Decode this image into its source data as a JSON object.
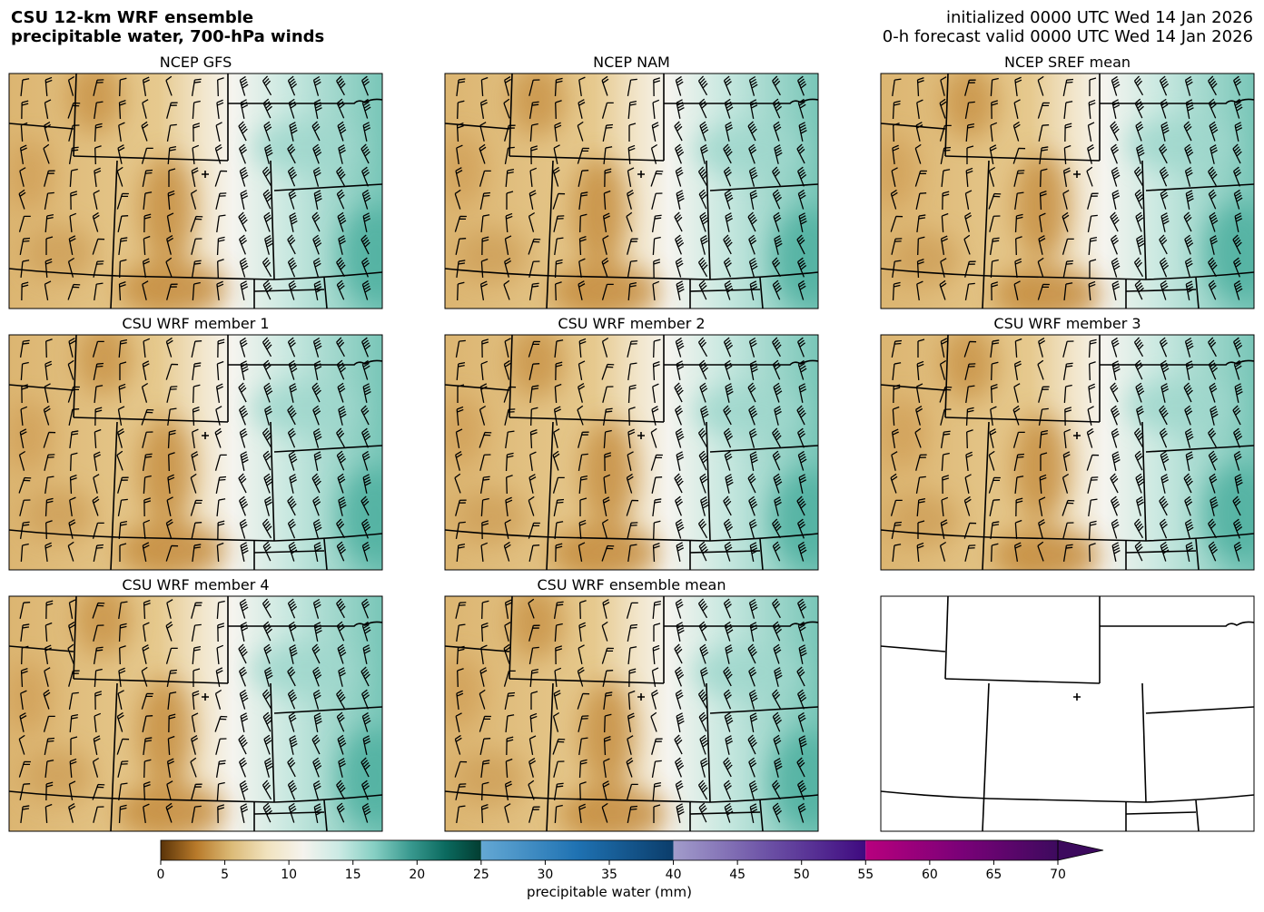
{
  "header": {
    "title_lines": [
      "CSU 12-km WRF ensemble",
      "precipitable water, 700-hPa winds"
    ],
    "init": "initialized 0000 UTC Wed 14 Jan 2026",
    "valid": "0-h forecast valid 0000 UTC Wed 14 Jan 2026"
  },
  "panel_titles": [
    "NCEP GFS",
    "NCEP NAM",
    "NCEP SREF mean",
    "CSU WRF member 1",
    "CSU WRF member 2",
    "CSU WRF member 3",
    "CSU WRF member 4",
    "CSU WRF ensemble mean"
  ],
  "colorbar": {
    "label": "precipitable water (mm)",
    "lim": [
      0,
      70
    ],
    "ticks": [
      0,
      5,
      10,
      15,
      20,
      25,
      30,
      35,
      40,
      45,
      50,
      55,
      60,
      65,
      70
    ],
    "extend": "max",
    "extend_color": "#3d0a5e",
    "bands": [
      {
        "range": [
          0,
          25
        ],
        "colors": [
          "#5a3308",
          "#b87a2a",
          "#dcbb78",
          "#f1e3bf",
          "#f5f3ee",
          "#cbeae4",
          "#86cfc3",
          "#3a9a90",
          "#0b6a5f",
          "#033d31"
        ]
      },
      {
        "range": [
          25,
          40
        ],
        "colors": [
          "#64a8d4",
          "#1f72b2",
          "#0b3d6b"
        ]
      },
      {
        "range": [
          40,
          55
        ],
        "colors": [
          "#a29ccb",
          "#6b50a5",
          "#3f0a80"
        ]
      },
      {
        "range": [
          55,
          70
        ],
        "colors": [
          "#b8007e",
          "#7a0178",
          "#3d0a5e"
        ]
      }
    ]
  }
}
